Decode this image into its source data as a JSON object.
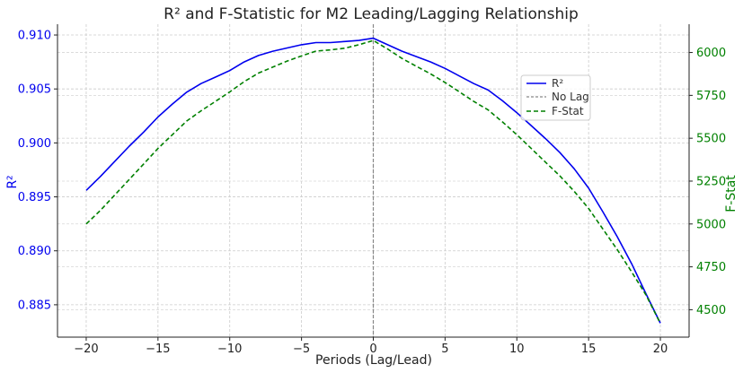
{
  "chart_data": {
    "type": "line",
    "title": "R² and F-Statistic for M2 Leading/Lagging Relationship",
    "xlabel": "Periods (Lag/Lead)",
    "ylabel_left": "R²",
    "ylabel_right": "F-Stat",
    "xlim": [
      -22,
      22
    ],
    "ylim_left": [
      0.882,
      0.911
    ],
    "ylim_right": [
      4340,
      6165
    ],
    "x_ticks": [
      -20,
      -15,
      -10,
      -5,
      0,
      5,
      10,
      15,
      20
    ],
    "x_tick_labels": [
      "−20",
      "−15",
      "−10",
      "−5",
      "0",
      "5",
      "10",
      "15",
      "20"
    ],
    "y_left_ticks": [
      0.885,
      0.89,
      0.895,
      0.9,
      0.905,
      0.91
    ],
    "y_left_tick_labels": [
      "0.885",
      "0.890",
      "0.895",
      "0.900",
      "0.905",
      "0.910"
    ],
    "y_right_ticks": [
      4500,
      4750,
      5000,
      5250,
      5500,
      5750,
      6000
    ],
    "y_right_tick_labels": [
      "4500",
      "4750",
      "5000",
      "5250",
      "5500",
      "5750",
      "6000"
    ],
    "grid": true,
    "legend_position": "right",
    "vline": {
      "x": 0,
      "name": "No Lag",
      "color": "#888888"
    },
    "x": [
      -20,
      -19,
      -18,
      -17,
      -16,
      -15,
      -14,
      -13,
      -12,
      -11,
      -10,
      -9,
      -8,
      -7,
      -6,
      -5,
      -4,
      -3,
      -2,
      -1,
      0,
      1,
      2,
      3,
      4,
      5,
      6,
      7,
      8,
      9,
      10,
      11,
      12,
      13,
      14,
      15,
      16,
      17,
      18,
      19,
      20
    ],
    "series": [
      {
        "name": "R²",
        "axis": "left",
        "color": "#0000ee",
        "style": "solid",
        "values": [
          0.8956,
          0.8969,
          0.8983,
          0.8997,
          0.901,
          0.9024,
          0.9036,
          0.9047,
          0.9055,
          0.9061,
          0.9067,
          0.9075,
          0.9081,
          0.9085,
          0.9088,
          0.9091,
          0.9093,
          0.9093,
          0.9094,
          0.9095,
          0.9097,
          0.9091,
          0.9085,
          0.908,
          0.9075,
          0.9069,
          0.9062,
          0.9055,
          0.9049,
          0.9039,
          0.9028,
          0.9016,
          0.9004,
          0.8991,
          0.8976,
          0.8958,
          0.8936,
          0.8913,
          0.8888,
          0.886,
          0.8833
        ]
      },
      {
        "name": "F-Stat",
        "axis": "right",
        "color": "#008000",
        "style": "dashed",
        "values": [
          5000,
          5080,
          5170,
          5260,
          5350,
          5440,
          5520,
          5600,
          5660,
          5715,
          5770,
          5830,
          5880,
          5915,
          5950,
          5980,
          6008,
          6015,
          6025,
          6045,
          6070,
          6020,
          5965,
          5920,
          5875,
          5825,
          5770,
          5715,
          5665,
          5595,
          5520,
          5440,
          5360,
          5280,
          5190,
          5090,
          4970,
          4850,
          4720,
          4585,
          4420
        ]
      }
    ]
  }
}
